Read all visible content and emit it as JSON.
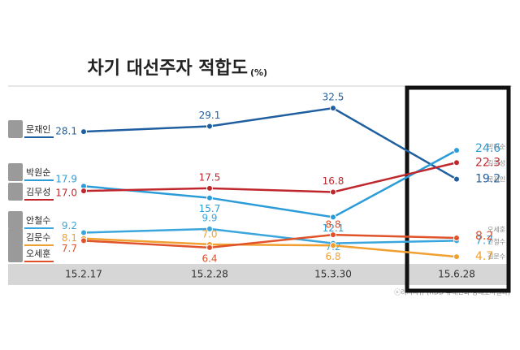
{
  "chart_data": {
    "type": "line",
    "title": "차기 대선주자 적합도",
    "unit": "(%)",
    "source": "ⓒ리서치뷰 (RDD 휴대전화 정례조사결과)",
    "categories": [
      "15.2.17",
      "15.2.28",
      "15.3.30",
      "15.6.28"
    ],
    "series": [
      {
        "name": "문재인",
        "color": "#1f5fa0",
        "values": [
          28.1,
          29.1,
          32.5,
          19.2
        ],
        "value_labels": [
          "28.1",
          "29.1",
          "32.5",
          "19.2"
        ]
      },
      {
        "name": "박원순",
        "color": "#2b9cd8",
        "values": [
          17.9,
          15.7,
          12.1,
          24.6
        ],
        "value_labels": [
          "17.9",
          "15.7",
          "12.1",
          "24.6"
        ]
      },
      {
        "name": "김무성",
        "color": "#c0272d",
        "values": [
          17.0,
          17.5,
          16.8,
          22.3
        ],
        "value_labels": [
          "17.0",
          "17.5",
          "16.8",
          "22.3"
        ]
      },
      {
        "name": "안철수",
        "color": "#3aa6dd",
        "values": [
          9.2,
          9.9,
          7.2,
          7.7
        ],
        "value_labels": [
          "9.2",
          "9.9",
          "7.2",
          "7.7"
        ]
      },
      {
        "name": "김문수",
        "color": "#f0a030",
        "values": [
          8.1,
          7.0,
          6.8,
          4.7
        ],
        "value_labels": [
          "8.1",
          "7.0",
          "6.8",
          "4.7"
        ]
      },
      {
        "name": "오세훈",
        "color": "#e0522a",
        "values": [
          7.7,
          6.4,
          8.8,
          8.2
        ],
        "value_labels": [
          "7.7",
          "6.4",
          "8.8",
          "8.2"
        ]
      }
    ]
  }
}
